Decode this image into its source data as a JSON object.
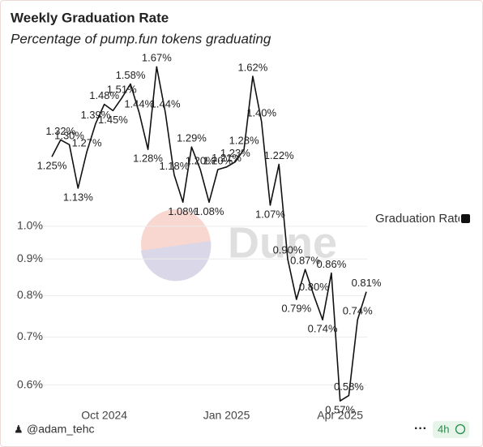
{
  "chart_data": {
    "type": "line",
    "title": "Weekly Graduation Rate",
    "subtitle": "Percentage of pump.fun tokens graduating",
    "log_scale": true,
    "categories": [
      null,
      null,
      null,
      null,
      null,
      null,
      "Oct 2024",
      null,
      null,
      null,
      null,
      null,
      null,
      null,
      null,
      null,
      null,
      null,
      null,
      null,
      "Jan 2025",
      null,
      null,
      null,
      null,
      null,
      null,
      null,
      null,
      null,
      null,
      null,
      null,
      "Apr 2025",
      null,
      null,
      null
    ],
    "series": [
      {
        "name": "Graduation Rate",
        "color": "#111111",
        "values": [
          1.25,
          1.32,
          1.3,
          1.13,
          1.27,
          1.39,
          1.48,
          1.45,
          1.51,
          1.58,
          1.44,
          1.28,
          1.67,
          1.44,
          1.18,
          1.08,
          1.29,
          1.2,
          1.08,
          1.2,
          1.21,
          1.23,
          1.28,
          1.62,
          1.4,
          1.07,
          1.22,
          0.9,
          0.79,
          0.87,
          0.8,
          0.74,
          0.86,
          0.57,
          0.58,
          0.74,
          0.81
        ],
        "value_labels": [
          "1.25%",
          "1.32%",
          "1.30%",
          "1.13%",
          "1.27%",
          "1.39%",
          "1.48%",
          "1.45%",
          "1.51%",
          "1.58%",
          "1.44%",
          "1.28%",
          "1.67%",
          "1.44%",
          "1.18%",
          "1.08%",
          "1.29%",
          "1.20%",
          "1.08%",
          "1.20%",
          "1.21%",
          "1.23%",
          "1.28%",
          "1.62%",
          "1.40%",
          "1.07%",
          "1.22%",
          "0.90%",
          "0.79%",
          "0.87%",
          "0.80%",
          "0.74%",
          "0.86%",
          "0.57%",
          "0.58%",
          "0.74%",
          "0.81%"
        ]
      }
    ],
    "ylim": [
      0.56,
      1.72
    ],
    "yticks": [
      {
        "value": 0.6,
        "label": "0.6%"
      },
      {
        "value": 0.7,
        "label": "0.7%"
      },
      {
        "value": 0.8,
        "label": "0.8%"
      },
      {
        "value": 0.9,
        "label": "0.9%"
      },
      {
        "value": 1.0,
        "label": "1.0%"
      }
    ],
    "grid": true,
    "legend": "right",
    "watermark": "Dune",
    "author": "@adam_tehc",
    "refresh": "4h"
  }
}
